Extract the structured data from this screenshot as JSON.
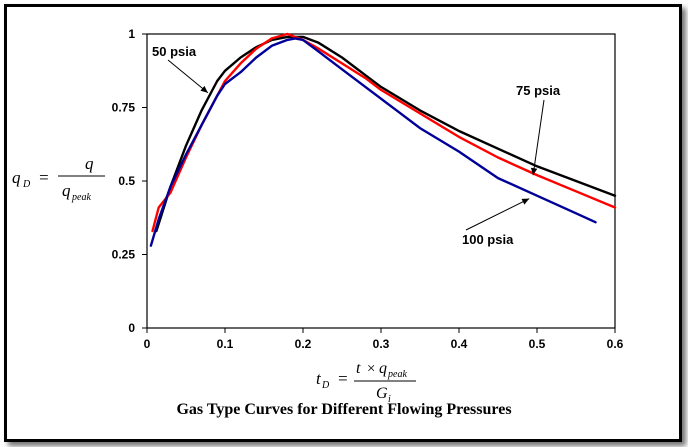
{
  "chart_data": {
    "type": "line",
    "title": "Gas Type Curves for Different Flowing Pressures",
    "xlabel": "t_D = t × q_peak / G_i",
    "ylabel": "q_D = q / q_peak",
    "xlim": [
      0,
      0.6
    ],
    "ylim": [
      0,
      1
    ],
    "xticks": [
      "0",
      "0.1",
      "0.2",
      "0.3",
      "0.4",
      "0.5",
      "0.6"
    ],
    "yticks": [
      "0",
      "0.25",
      "0.5",
      "0.75",
      "1"
    ],
    "grid": false,
    "series": [
      {
        "name": "50 psia",
        "color": "#000000",
        "x": [
          0.012,
          0.03,
          0.05,
          0.07,
          0.09,
          0.1,
          0.12,
          0.14,
          0.16,
          0.18,
          0.2,
          0.22,
          0.25,
          0.28,
          0.3,
          0.35,
          0.4,
          0.45,
          0.5,
          0.55,
          0.6
        ],
        "y": [
          0.33,
          0.48,
          0.62,
          0.74,
          0.84,
          0.875,
          0.92,
          0.955,
          0.98,
          0.99,
          0.99,
          0.97,
          0.92,
          0.86,
          0.82,
          0.74,
          0.67,
          0.61,
          0.55,
          0.5,
          0.45
        ]
      },
      {
        "name": "75 psia",
        "color": "#ff0000",
        "x": [
          0.007,
          0.015,
          0.03,
          0.05,
          0.07,
          0.09,
          0.1,
          0.12,
          0.14,
          0.16,
          0.18,
          0.2,
          0.22,
          0.25,
          0.28,
          0.3,
          0.35,
          0.4,
          0.45,
          0.5,
          0.55,
          0.6
        ],
        "y": [
          0.33,
          0.41,
          0.46,
          0.58,
          0.69,
          0.79,
          0.84,
          0.9,
          0.95,
          0.985,
          1.0,
          0.98,
          0.95,
          0.9,
          0.85,
          0.81,
          0.73,
          0.65,
          0.58,
          0.52,
          0.465,
          0.41
        ]
      },
      {
        "name": "100 psia",
        "color": "#000099",
        "x": [
          0.005,
          0.015,
          0.03,
          0.05,
          0.07,
          0.09,
          0.1,
          0.12,
          0.14,
          0.16,
          0.18,
          0.19,
          0.2,
          0.22,
          0.25,
          0.28,
          0.3,
          0.32,
          0.35,
          0.4,
          0.45,
          0.5,
          0.55,
          0.575
        ],
        "y": [
          0.28,
          0.37,
          0.48,
          0.59,
          0.69,
          0.79,
          0.83,
          0.87,
          0.92,
          0.96,
          0.98,
          0.985,
          0.98,
          0.94,
          0.88,
          0.82,
          0.78,
          0.74,
          0.68,
          0.6,
          0.51,
          0.45,
          0.39,
          0.36
        ]
      }
    ],
    "annotations": [
      {
        "text": "50 psia",
        "arrow_to": [
          0.078,
          0.8
        ]
      },
      {
        "text": "75 psia",
        "arrow_to": [
          0.495,
          0.52
        ]
      },
      {
        "text": "100 psia",
        "arrow_to": [
          0.49,
          0.44
        ]
      }
    ]
  },
  "formulas": {
    "y": {
      "lhs_sym": "q",
      "lhs_sub": "D",
      "eq": "=",
      "num": "q",
      "den_sym": "q",
      "den_sub": "peak"
    },
    "x": {
      "lhs_sym": "t",
      "lhs_sub": "D",
      "eq": "=",
      "num_t": "t",
      "num_times": "×",
      "num_q": "q",
      "num_sub": "peak",
      "den_sym": "G",
      "den_sub": "i"
    }
  }
}
